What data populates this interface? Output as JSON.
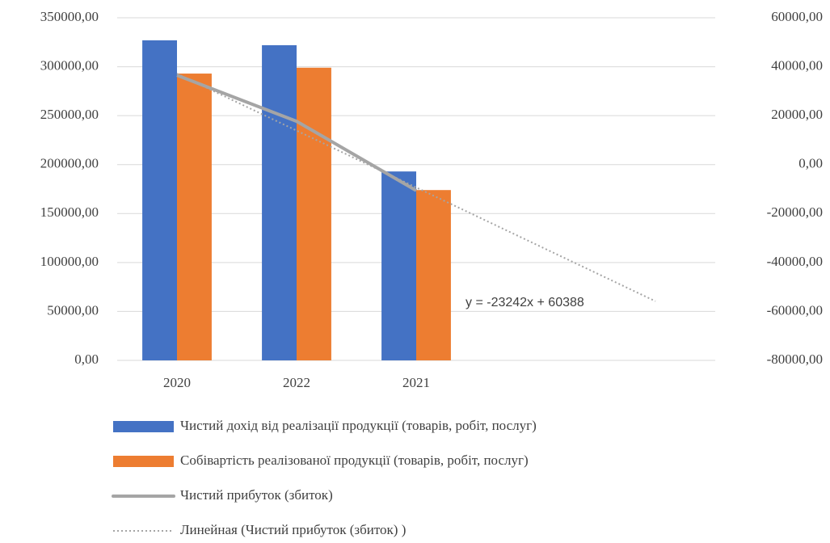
{
  "chart_data": {
    "type": "bar",
    "categories": [
      "2020",
      "2022",
      "2021",
      null,
      null
    ],
    "series": [
      {
        "name": "Чистий дохід від реалізації продукції (товарів, робіт, послуг)",
        "type": "bar",
        "color": "#4472c4",
        "values": [
          327000,
          322000,
          193000,
          null,
          null
        ]
      },
      {
        "name": "Собівартість реалізованої продукції (товарів, робіт, послуг)",
        "type": "bar",
        "color": "#ed7d31",
        "values": [
          293000,
          299000,
          174000,
          null,
          null
        ]
      },
      {
        "name": "Чистий прибуток (збиток)",
        "type": "line",
        "axis": "y2",
        "color": "#a5a5a5",
        "values": [
          36500,
          17700,
          -10600,
          null,
          null
        ]
      },
      {
        "name": "Линейная (Чистий прибуток (збиток) )",
        "type": "trendline",
        "axis": "y2",
        "color": "#a5a5a5",
        "values": [
          37146,
          13904,
          -9338,
          -32580,
          -55822
        ]
      }
    ],
    "annotation": "y = -23242x + 60388",
    "ylim": [
      0,
      350000
    ],
    "yticks": [
      {
        "value": 0,
        "label": "0,00"
      },
      {
        "value": 50000,
        "label": "50000,00"
      },
      {
        "value": 100000,
        "label": "100000,00"
      },
      {
        "value": 150000,
        "label": "150000,00"
      },
      {
        "value": 200000,
        "label": "200000,00"
      },
      {
        "value": 250000,
        "label": "250000,00"
      },
      {
        "value": 300000,
        "label": "300000,00"
      },
      {
        "value": 350000,
        "label": "350000,00"
      }
    ],
    "y2lim": [
      -80000,
      60000
    ],
    "y2ticks": [
      {
        "value": -80000,
        "label": "-80000,00"
      },
      {
        "value": -60000,
        "label": "-60000,00"
      },
      {
        "value": -40000,
        "label": "-40000,00"
      },
      {
        "value": -20000,
        "label": "-20000,00"
      },
      {
        "value": 0,
        "label": "0,00"
      },
      {
        "value": 20000,
        "label": "20000,00"
      },
      {
        "value": 40000,
        "label": "40000,00"
      },
      {
        "value": 60000,
        "label": "60000,00"
      }
    ],
    "grid": true
  }
}
